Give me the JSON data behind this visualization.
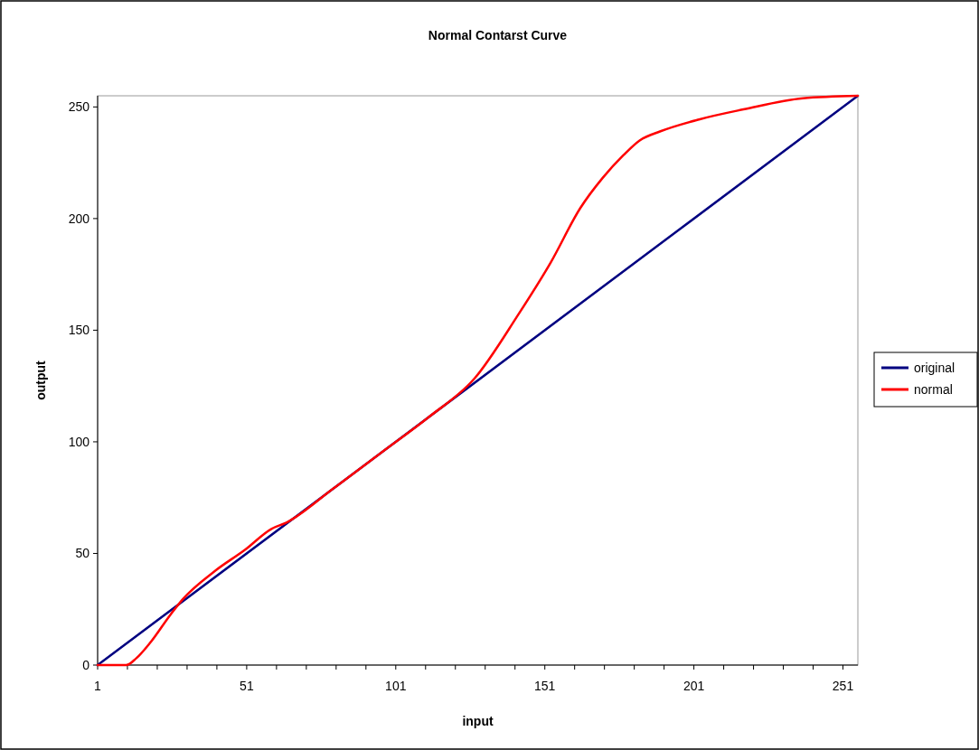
{
  "chart_data": {
    "type": "line",
    "title": "Normal Contarst Curve",
    "xlabel": "input",
    "ylabel": "output",
    "xlim": [
      1,
      256
    ],
    "xticks": [
      1,
      {
        "value": 11,
        "label": null
      },
      {
        "value": 21,
        "label": null
      },
      {
        "value": 31,
        "label": null
      },
      {
        "value": 41,
        "label": null
      },
      51,
      {
        "value": 61,
        "label": null
      },
      {
        "value": 71,
        "label": null
      },
      {
        "value": 81,
        "label": null
      },
      {
        "value": 91,
        "label": null
      },
      101,
      {
        "value": 111,
        "label": null
      },
      {
        "value": 121,
        "label": null
      },
      {
        "value": 131,
        "label": null
      },
      {
        "value": 141,
        "label": null
      },
      151,
      {
        "value": 161,
        "label": null
      },
      {
        "value": 171,
        "label": null
      },
      {
        "value": 181,
        "label": null
      },
      {
        "value": 191,
        "label": null
      },
      201,
      {
        "value": 211,
        "label": null
      },
      {
        "value": 221,
        "label": null
      },
      {
        "value": 231,
        "label": null
      },
      {
        "value": 241,
        "label": null
      },
      251
    ],
    "ylim": [
      0,
      255
    ],
    "yticks": [
      0,
      50,
      100,
      150,
      200,
      250
    ],
    "legend": "right",
    "grid": false,
    "marker": "none",
    "line_style": "solid",
    "series": [
      {
        "name": "original",
        "color": "#000080",
        "x": [
          1,
          256
        ],
        "values": [
          0,
          255
        ]
      },
      {
        "name": "normal",
        "color": "#ff0000",
        "x": [
          1,
          10.6,
          14,
          18.5,
          25.5,
          29.5,
          40.4,
          50.4,
          59.3,
          64.3,
          80,
          96,
          112,
          127.5,
          142,
          153,
          162.9,
          170.4,
          177.3,
          182.8,
          189.8,
          202.7,
          217.6,
          237.6,
          256
        ],
        "values": [
          0,
          0,
          3.1,
          9.8,
          22.7,
          29.4,
          42.2,
          51.6,
          61,
          63.8,
          79,
          95,
          111,
          128.5,
          156.8,
          180.4,
          204.7,
          218.2,
          228.3,
          235,
          239.1,
          244.4,
          248.9,
          253.9,
          255
        ]
      }
    ]
  }
}
